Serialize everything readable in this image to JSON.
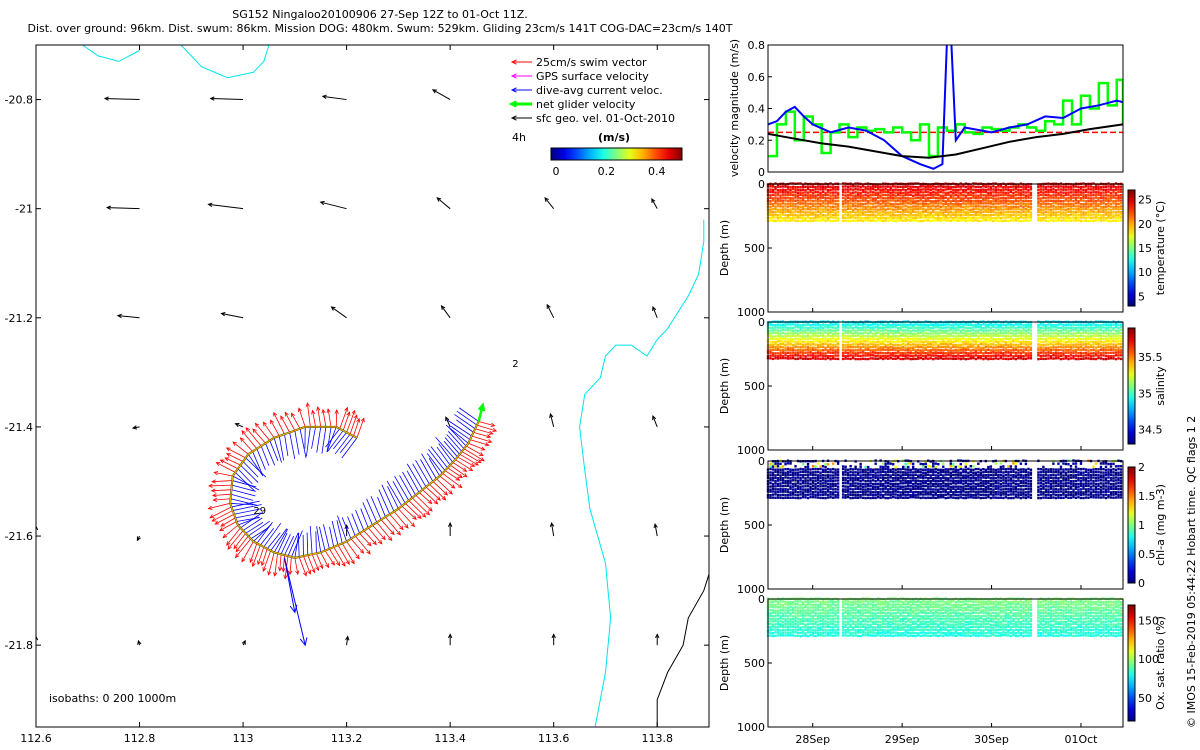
{
  "title_lines": [
    "SG152 Ningaloo20100906 27-Sep 12Z to 01-Oct 11Z.",
    "Dist. over ground: 96km. Dist. swum: 86km. Mission DOG: 480km. Swum: 529km. Gliding 23cm/s 141T COG-DAC=23cm/s 140T"
  ],
  "credit": "© IMOS 15-Feb-2019 05:44:22 Hobart time. QC flags 1  2",
  "colors": {
    "swim": "#ff0000",
    "gps": "#ff00ff",
    "dac": "#0000ff",
    "net": "#00ff00",
    "geo": "#000000",
    "coast": "#00e5ee",
    "isobath_deep": "#000000",
    "threshold": "#ff0000"
  },
  "chart_data": [
    {
      "type": "scatter",
      "name": "map",
      "xlim": [
        112.6,
        113.9
      ],
      "ylim": [
        -21.95,
        -20.7
      ],
      "xticks": [
        112.6,
        112.8,
        113,
        113.2,
        113.4,
        113.6,
        113.8
      ],
      "xtick_labels": [
        "112.6",
        "112.8",
        "113",
        "113.2",
        "113.4",
        "113.6",
        "113.8"
      ],
      "yticks": [
        -20.8,
        -21,
        -21.2,
        -21.4,
        -21.6,
        -21.8
      ],
      "ytick_labels": [
        "-20.8",
        "-21",
        "-21.2",
        "-21.4",
        "-21.6",
        "-21.8"
      ],
      "legend": [
        {
          "label": "25cm/s swim vector",
          "color_key": "swim",
          "bold": false
        },
        {
          "label": "GPS surface velocity",
          "color_key": "gps",
          "bold": false
        },
        {
          "label": "dive-avg current veloc.",
          "color_key": "dac",
          "bold": false
        },
        {
          "label": "net glider velocity",
          "color_key": "net",
          "bold": true
        },
        {
          "label": "sfc geo. vel. 01-Oct-2010",
          "color_key": "geo",
          "bold": false
        }
      ],
      "legend_position": "top-right",
      "duration_label": "4h",
      "colorbar": {
        "label": "(m/s)",
        "ticks": [
          0,
          0.2,
          0.4
        ],
        "tick_labels": [
          "0",
          "0.2",
          "0.4"
        ],
        "range": [
          -0.02,
          0.5
        ]
      },
      "isobaths_label": "isobaths: 0   200  1000m",
      "annotations": [
        {
          "text": "29",
          "lon": 113.02,
          "lat": -21.56
        },
        {
          "text": "2",
          "lon": 113.52,
          "lat": -21.29
        }
      ],
      "track": {
        "lon": [
          113.22,
          113.18,
          113.12,
          113.06,
          113.01,
          112.98,
          112.975,
          112.99,
          113.02,
          113.06,
          113.1,
          113.15,
          113.2,
          113.25,
          113.3,
          113.34,
          113.38,
          113.41,
          113.435,
          113.455
        ],
        "lat": [
          -21.42,
          -21.4,
          -21.4,
          -21.42,
          -21.45,
          -21.49,
          -21.54,
          -21.58,
          -21.61,
          -21.63,
          -21.64,
          -21.63,
          -21.61,
          -21.58,
          -21.55,
          -21.52,
          -21.49,
          -21.46,
          -21.43,
          -21.39
        ]
      },
      "dac_outlier": {
        "lon": [
          113.08,
          113.12,
          113.1
        ],
        "lat": [
          -21.64,
          -21.8,
          -21.74
        ]
      },
      "net_velocity_end": {
        "lon": 113.455,
        "lat": -21.39,
        "dlon": 0.008,
        "dlat": 0.03
      },
      "geo_vectors": [
        {
          "lon": 112.8,
          "lat": -20.8,
          "u": -0.32,
          "v": 0.01
        },
        {
          "lon": 113.0,
          "lat": -20.8,
          "u": -0.3,
          "v": 0.01
        },
        {
          "lon": 113.2,
          "lat": -20.8,
          "u": -0.22,
          "v": 0.03
        },
        {
          "lon": 113.4,
          "lat": -20.8,
          "u": -0.16,
          "v": 0.09
        },
        {
          "lon": 112.8,
          "lat": -21.0,
          "u": -0.3,
          "v": 0.01
        },
        {
          "lon": 113.0,
          "lat": -21.0,
          "u": -0.32,
          "v": 0.04
        },
        {
          "lon": 113.2,
          "lat": -21.0,
          "u": -0.24,
          "v": 0.06
        },
        {
          "lon": 113.4,
          "lat": -21.0,
          "u": -0.12,
          "v": 0.1
        },
        {
          "lon": 113.6,
          "lat": -21.0,
          "u": -0.08,
          "v": 0.1
        },
        {
          "lon": 113.8,
          "lat": -21.0,
          "u": -0.05,
          "v": 0.09
        },
        {
          "lon": 112.8,
          "lat": -21.2,
          "u": -0.2,
          "v": 0.02
        },
        {
          "lon": 113.0,
          "lat": -21.2,
          "u": -0.2,
          "v": 0.04
        },
        {
          "lon": 113.2,
          "lat": -21.2,
          "u": -0.14,
          "v": 0.1
        },
        {
          "lon": 113.4,
          "lat": -21.2,
          "u": -0.08,
          "v": 0.11
        },
        {
          "lon": 113.6,
          "lat": -21.2,
          "u": -0.06,
          "v": 0.12
        },
        {
          "lon": 113.8,
          "lat": -21.2,
          "u": -0.04,
          "v": 0.1
        },
        {
          "lon": 112.6,
          "lat": -21.4,
          "u": -0.04,
          "v": -0.07
        },
        {
          "lon": 112.8,
          "lat": -21.4,
          "u": -0.06,
          "v": -0.01
        },
        {
          "lon": 113.0,
          "lat": -21.4,
          "u": -0.07,
          "v": 0.03
        },
        {
          "lon": 113.4,
          "lat": -21.4,
          "u": -0.04,
          "v": 0.09
        },
        {
          "lon": 113.6,
          "lat": -21.4,
          "u": -0.03,
          "v": 0.12
        },
        {
          "lon": 113.8,
          "lat": -21.4,
          "u": -0.04,
          "v": 0.1
        },
        {
          "lon": 112.6,
          "lat": -21.6,
          "u": 0.0,
          "v": 0.09
        },
        {
          "lon": 112.8,
          "lat": -21.6,
          "u": -0.02,
          "v": -0.04
        },
        {
          "lon": 113.2,
          "lat": -21.6,
          "u": 0.0,
          "v": 0.1
        },
        {
          "lon": 113.4,
          "lat": -21.6,
          "u": 0.0,
          "v": 0.12
        },
        {
          "lon": 113.6,
          "lat": -21.6,
          "u": -0.02,
          "v": 0.12
        },
        {
          "lon": 113.8,
          "lat": -21.6,
          "u": -0.02,
          "v": 0.11
        },
        {
          "lon": 112.6,
          "lat": -21.8,
          "u": 0.0,
          "v": 0.08
        },
        {
          "lon": 112.8,
          "lat": -21.8,
          "u": -0.01,
          "v": 0.04
        },
        {
          "lon": 113.0,
          "lat": -21.8,
          "u": 0.02,
          "v": 0.04
        },
        {
          "lon": 113.2,
          "lat": -21.8,
          "u": 0.01,
          "v": 0.08
        },
        {
          "lon": 113.4,
          "lat": -21.8,
          "u": 0.0,
          "v": 0.1
        },
        {
          "lon": 113.6,
          "lat": -21.8,
          "u": 0.0,
          "v": 0.1
        },
        {
          "lon": 113.8,
          "lat": -21.8,
          "u": 0.0,
          "v": 0.1
        }
      ],
      "coastline_0m": {
        "lon": [
          113.68,
          113.7,
          113.71,
          113.7,
          113.67,
          113.66,
          113.65,
          113.66,
          113.69,
          113.7,
          113.72,
          113.75,
          113.78,
          113.8,
          113.82,
          113.84,
          113.86,
          113.88,
          113.89,
          113.89
        ],
        "lat": [
          -21.95,
          -21.85,
          -21.75,
          -21.65,
          -21.55,
          -21.48,
          -21.4,
          -21.34,
          -21.31,
          -21.27,
          -21.25,
          -21.25,
          -21.27,
          -21.24,
          -21.22,
          -21.19,
          -21.16,
          -21.12,
          -21.06,
          -21.02
        ]
      },
      "coastline_north": {
        "lon": [
          112.69,
          112.72,
          112.76,
          112.8
        ],
        "lat": [
          -20.7,
          -20.72,
          -20.73,
          -20.71
        ]
      },
      "coastline_north2": {
        "lon": [
          112.88,
          112.92,
          112.97,
          113.02,
          113.04,
          113.05,
          113.04
        ],
        "lat": [
          -20.7,
          -20.74,
          -20.76,
          -20.75,
          -20.73,
          -20.7,
          -20.69
        ]
      },
      "isobath_1000m": {
        "lon": [
          113.8,
          113.8,
          113.82,
          113.85,
          113.86,
          113.89,
          113.9
        ],
        "lat": [
          -21.95,
          -21.9,
          -21.85,
          -21.8,
          -21.75,
          -21.7,
          -21.67
        ]
      }
    },
    {
      "type": "line",
      "name": "velocity",
      "ylabel": "velocity magnitude (m/s)",
      "ylim": [
        0,
        0.8
      ],
      "yticks": [
        0,
        0.2,
        0.4,
        0.6,
        0.8
      ],
      "ytick_labels": [
        "0",
        "0.2",
        "0.4",
        "0.6",
        "0.8"
      ],
      "xlim": [
        27.5,
        31.47
      ],
      "threshold": 0.25,
      "series": [
        {
          "name": "net glider velocity",
          "color_key": "net",
          "x": [
            27.5,
            27.6,
            27.7,
            27.8,
            27.9,
            28.0,
            28.1,
            28.2,
            28.3,
            28.4,
            28.5,
            28.6,
            28.7,
            28.8,
            28.9,
            29.0,
            29.1,
            29.2,
            29.3,
            29.4,
            29.5,
            29.6,
            29.7,
            29.8,
            29.9,
            30.0,
            30.1,
            30.2,
            30.3,
            30.4,
            30.5,
            30.6,
            30.7,
            30.8,
            30.9,
            31.0,
            31.1,
            31.2,
            31.3,
            31.4,
            31.47
          ],
          "y": [
            0.1,
            0.3,
            0.38,
            0.2,
            0.35,
            0.3,
            0.12,
            0.25,
            0.3,
            0.22,
            0.28,
            0.26,
            0.27,
            0.25,
            0.28,
            0.25,
            0.2,
            0.3,
            0.1,
            0.28,
            0.26,
            0.3,
            0.25,
            0.24,
            0.28,
            0.27,
            0.26,
            0.28,
            0.3,
            0.28,
            0.26,
            0.32,
            0.3,
            0.45,
            0.3,
            0.48,
            0.4,
            0.56,
            0.42,
            0.58,
            0.3
          ]
        },
        {
          "name": "dive-avg current",
          "color_key": "dac",
          "x": [
            27.5,
            27.6,
            27.7,
            27.8,
            27.9,
            28.0,
            28.2,
            28.4,
            28.6,
            28.8,
            29.0,
            29.2,
            29.35,
            29.45,
            29.5,
            29.55,
            29.6,
            29.7,
            29.8,
            30.0,
            30.2,
            30.4,
            30.6,
            30.8,
            31.0,
            31.2,
            31.4,
            31.47
          ],
          "y": [
            0.3,
            0.32,
            0.38,
            0.41,
            0.35,
            0.3,
            0.25,
            0.28,
            0.26,
            0.2,
            0.1,
            0.05,
            0.02,
            0.05,
            0.8,
            0.82,
            0.2,
            0.28,
            0.27,
            0.25,
            0.28,
            0.3,
            0.35,
            0.34,
            0.4,
            0.42,
            0.45,
            0.44
          ]
        },
        {
          "name": "swim speed",
          "color_key": "geo",
          "x": [
            27.5,
            27.8,
            28.1,
            28.4,
            28.7,
            29.0,
            29.3,
            29.6,
            29.9,
            30.2,
            30.5,
            30.8,
            31.1,
            31.47
          ],
          "y": [
            0.24,
            0.21,
            0.18,
            0.16,
            0.13,
            0.1,
            0.09,
            0.11,
            0.15,
            0.19,
            0.22,
            0.24,
            0.27,
            0.3
          ]
        }
      ]
    },
    {
      "type": "scatter",
      "name": "temperature",
      "ylabel": "Depth (m)",
      "ylim": [
        1000,
        0
      ],
      "yticks": [
        0,
        500,
        1000
      ],
      "ytick_labels": [
        "0",
        "500",
        "1000"
      ],
      "colorbar": {
        "label": "temperature (°C)",
        "ticks": [
          5,
          10,
          15,
          20,
          25
        ],
        "tick_labels": [
          "5",
          "10",
          "15",
          "20",
          "25"
        ],
        "range": [
          3,
          27
        ]
      },
      "profile_max_depth": 300,
      "value_top": 25,
      "value_bottom": 18,
      "gap_days": [
        [
          30.45,
          30.52
        ]
      ]
    },
    {
      "type": "scatter",
      "name": "salinity",
      "ylabel": "Depth (m)",
      "ylim": [
        1000,
        0
      ],
      "yticks": [
        0,
        500,
        1000
      ],
      "ytick_labels": [
        "0",
        "500",
        "1000"
      ],
      "colorbar": {
        "label": "salinity",
        "ticks": [
          34.5,
          35,
          35.5
        ],
        "tick_labels": [
          "34.5",
          "35",
          "35.5"
        ],
        "range": [
          34.3,
          35.9
        ]
      },
      "profile_max_depth": 300,
      "value_top": 34.85,
      "value_bottom": 35.8,
      "gap_days": [
        [
          30.45,
          30.52
        ]
      ]
    },
    {
      "type": "scatter",
      "name": "chlorophyll",
      "ylabel": "Depth (m)",
      "ylim": [
        1000,
        0
      ],
      "yticks": [
        0,
        500,
        1000
      ],
      "ytick_labels": [
        "0",
        "500",
        "1000"
      ],
      "colorbar": {
        "label": "chl-a (mg m-3)",
        "ticks": [
          0,
          0.5,
          1,
          1.5,
          2
        ],
        "tick_labels": [
          "0",
          "0.5",
          "1",
          "1.5",
          "2"
        ],
        "range": [
          0,
          2
        ]
      },
      "profile_max_depth": 300,
      "value_top": 0.8,
      "value_bottom": 0.0,
      "gap_days": [
        [
          30.45,
          30.52
        ]
      ]
    },
    {
      "type": "scatter",
      "name": "oxygen",
      "ylabel": "Depth (m)",
      "ylim": [
        1000,
        0
      ],
      "yticks": [
        0,
        500,
        1000
      ],
      "ytick_labels": [
        "0",
        "500",
        "1000"
      ],
      "colorbar": {
        "label": "Ox. sat. ratio (%)",
        "ticks": [
          50,
          100,
          150
        ],
        "tick_labels": [
          "50",
          "100",
          "150"
        ],
        "range": [
          20,
          170
        ]
      },
      "profile_max_depth": 300,
      "value_top": 95,
      "value_bottom": 80,
      "gap_days": [
        [
          30.45,
          30.52
        ]
      ]
    },
    {
      "type": "line",
      "name": "time_axis",
      "xticks": [
        28,
        29,
        30,
        31
      ],
      "xtick_labels": [
        "28Sep",
        "29Sep",
        "30Sep",
        "01Oct"
      ],
      "xlim": [
        27.5,
        31.47
      ]
    }
  ]
}
